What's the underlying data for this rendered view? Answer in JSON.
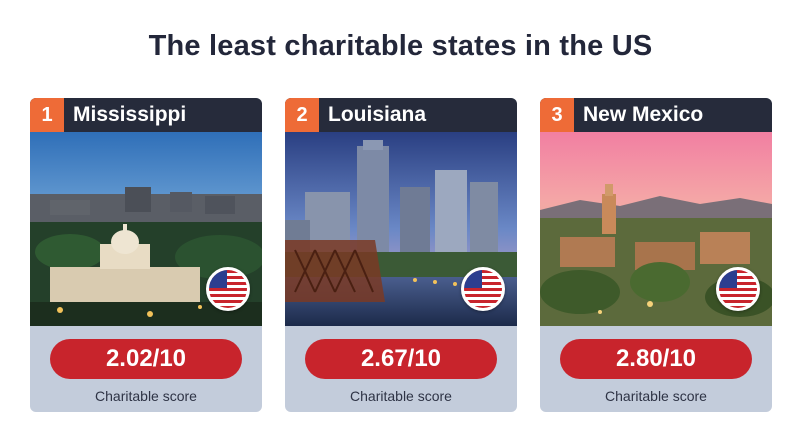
{
  "title": "The least charitable states in the US",
  "cards": [
    {
      "rank": "1",
      "state": "Mississippi",
      "score": "2.02/10",
      "score_label": "Charitable score",
      "flag_icon": "us-flag-icon"
    },
    {
      "rank": "2",
      "state": "Louisiana",
      "score": "2.67/10",
      "score_label": "Charitable score",
      "flag_icon": "us-flag-icon"
    },
    {
      "rank": "3",
      "state": "New Mexico",
      "score": "2.80/10",
      "score_label": "Charitable score",
      "flag_icon": "us-flag-icon"
    }
  ],
  "colors": {
    "title": "#23273a",
    "card_bg": "#c3ccdb",
    "header_bg": "#262b3b",
    "rank_bg": "#ee6b37",
    "score_pill": "#c8242c"
  }
}
